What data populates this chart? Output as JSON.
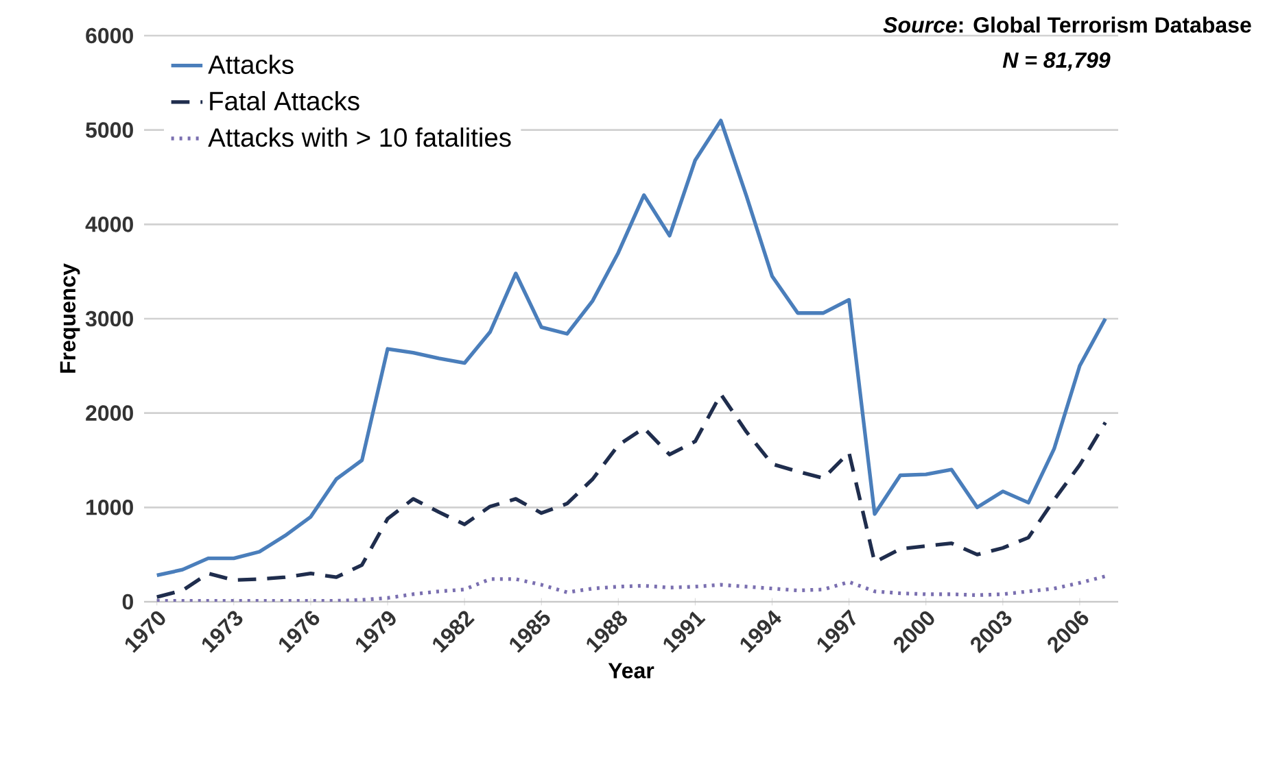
{
  "chart_data": {
    "type": "line",
    "xlabel": "Year",
    "ylabel": "Frequency",
    "annotations": [
      "*Source*: Global Terrorism Database",
      "*N = 81,799*"
    ],
    "x": [
      1970,
      1971,
      1972,
      1973,
      1974,
      1975,
      1976,
      1977,
      1978,
      1979,
      1980,
      1981,
      1982,
      1983,
      1984,
      1985,
      1986,
      1987,
      1988,
      1989,
      1990,
      1991,
      1992,
      1993,
      1994,
      1995,
      1996,
      1997,
      1998,
      1999,
      2000,
      2001,
      2002,
      2003,
      2004,
      2005,
      2006,
      2007
    ],
    "xlim": [
      1969.5,
      2007.5
    ],
    "xticks": [
      1970,
      1973,
      1976,
      1979,
      1982,
      1985,
      1988,
      1991,
      1994,
      1997,
      2000,
      2003,
      2006
    ],
    "ylim": [
      0,
      6000
    ],
    "yticks": [
      0,
      1000,
      2000,
      3000,
      4000,
      5000,
      6000
    ],
    "grid": "y",
    "legend": "top left",
    "marker": "none",
    "series": [
      {
        "name": "Attacks",
        "color": "#4a7ebb",
        "line_style": "solid",
        "values": [
          280,
          340,
          460,
          460,
          530,
          700,
          900,
          1300,
          1500,
          2680,
          2640,
          2580,
          2530,
          2860,
          3480,
          2910,
          2840,
          3190,
          3700,
          4310,
          3880,
          4680,
          5100,
          4300,
          3450,
          3060,
          3060,
          3200,
          930,
          1340,
          1350,
          1400,
          1000,
          1170,
          1050,
          1620,
          2500,
          3000
        ]
      },
      {
        "name": "Fatal Attacks",
        "color": "#1f2d4d",
        "line_style": "dashed",
        "values": [
          50,
          120,
          300,
          230,
          240,
          260,
          300,
          260,
          390,
          880,
          1090,
          950,
          820,
          1010,
          1090,
          940,
          1040,
          1300,
          1660,
          1840,
          1560,
          1700,
          2200,
          1800,
          1460,
          1380,
          1310,
          1580,
          420,
          560,
          590,
          620,
          500,
          570,
          680,
          1080,
          1450,
          1900
        ]
      },
      {
        "name": "Attacks with > 10 fatalities",
        "color": "#7a6fb0",
        "line_style": "dotted",
        "values": [
          10,
          10,
          10,
          10,
          10,
          10,
          10,
          10,
          20,
          40,
          80,
          110,
          130,
          240,
          240,
          180,
          100,
          140,
          160,
          170,
          150,
          160,
          180,
          160,
          140,
          120,
          130,
          210,
          110,
          90,
          80,
          80,
          70,
          80,
          110,
          140,
          200,
          270
        ]
      }
    ]
  }
}
